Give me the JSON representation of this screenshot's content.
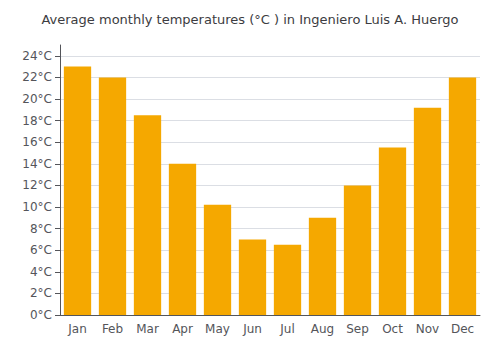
{
  "chart_data": {
    "type": "bar",
    "title": "Average monthly temperatures (°C ) in Ingeniero Luis A. Huergo",
    "categories": [
      "Jan",
      "Feb",
      "Mar",
      "Apr",
      "May",
      "Jun",
      "Jul",
      "Aug",
      "Sep",
      "Oct",
      "Nov",
      "Dec"
    ],
    "values": [
      23.0,
      22.0,
      18.5,
      14.0,
      10.2,
      7.0,
      6.5,
      9.0,
      12.0,
      15.5,
      19.2,
      22.0
    ],
    "color": "#F5A800",
    "ylim": [
      0,
      25
    ],
    "yticks": [
      {
        "value": 0,
        "label": "0°C"
      },
      {
        "value": 2,
        "label": "2°C"
      },
      {
        "value": 4,
        "label": "4°C"
      },
      {
        "value": 6,
        "label": "6°C"
      },
      {
        "value": 8,
        "label": "8°C"
      },
      {
        "value": 10,
        "label": "10°C"
      },
      {
        "value": 12,
        "label": "12°C"
      },
      {
        "value": 14,
        "label": "14°C"
      },
      {
        "value": 16,
        "label": "16°C"
      },
      {
        "value": 18,
        "label": "18°C"
      },
      {
        "value": 20,
        "label": "20°C"
      },
      {
        "value": 22,
        "label": "22°C"
      },
      {
        "value": 24,
        "label": "24°C"
      }
    ],
    "grid": true
  }
}
